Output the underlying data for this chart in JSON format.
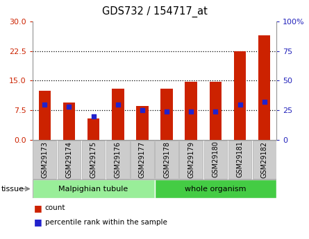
{
  "title": "GDS732 / 154717_at",
  "samples": [
    "GSM29173",
    "GSM29174",
    "GSM29175",
    "GSM29176",
    "GSM29177",
    "GSM29178",
    "GSM29179",
    "GSM29180",
    "GSM29181",
    "GSM29182"
  ],
  "counts": [
    12.5,
    9.5,
    5.5,
    13.0,
    8.5,
    13.0,
    14.8,
    14.8,
    22.5,
    26.5
  ],
  "percentiles": [
    30,
    28,
    20,
    30,
    25,
    24,
    24,
    24,
    30,
    32
  ],
  "ylim_left": [
    0,
    30
  ],
  "ylim_right": [
    0,
    100
  ],
  "yticks_left": [
    0,
    7.5,
    15,
    22.5,
    30
  ],
  "yticks_right": [
    0,
    25,
    50,
    75,
    100
  ],
  "bar_color": "#cc2200",
  "dot_color": "#2222cc",
  "bar_width": 0.5,
  "tissue_groups": [
    {
      "label": "Malpighian tubule",
      "start": 0,
      "end": 5,
      "color": "#99ee99"
    },
    {
      "label": "whole organism",
      "start": 5,
      "end": 10,
      "color": "#44cc44"
    }
  ],
  "tissue_label": "tissue",
  "legend_count_label": "count",
  "legend_pct_label": "percentile rank within the sample",
  "left_tick_color": "#cc2200",
  "right_tick_color": "#2222bb",
  "dotted_lines": [
    7.5,
    15,
    22.5
  ],
  "xlabel_bg_color": "#cccccc",
  "xlabel_border_color": "#aaaaaa",
  "plot_bg": "#ffffff",
  "outer_border_color": "#999999"
}
